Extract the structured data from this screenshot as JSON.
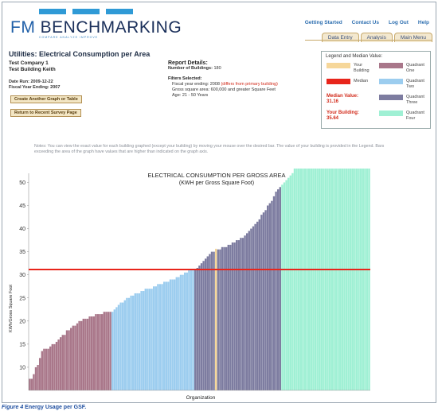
{
  "app": {
    "logo_prefix": "FM ",
    "logo_main": "BENCHMARKING",
    "logo_tagline": "COMPARE    ANALYZE    IMPROVE"
  },
  "top_links": [
    "Getting Started",
    "Contact Us",
    "Log Out",
    "Help"
  ],
  "tabs": [
    "Data Entry",
    "Analysis",
    "Main Menu"
  ],
  "page_title": "Utilities: Electrical Consumption per Area",
  "company": {
    "name": "Test Company 1",
    "building": "Test Building Keith",
    "date_run": "Date Run: 2009-12-22",
    "fiscal_year_ending": "Fiscal Year Ending: 2007"
  },
  "buttons": {
    "create_graph": "Create Another Graph or Table",
    "return_survey": "Return to Recent Survey Page"
  },
  "report": {
    "heading": "Report Details:",
    "num_buildings_label": "Number of Buildings:",
    "num_buildings_value": "180",
    "filters_heading": "Filters Selected:",
    "filter_fiscal": "Fiscal year ending: 2008",
    "filter_fiscal_note": "(differs from primary building)",
    "filter_area": "Gross square area: 600,000 and greater Square Feet",
    "filter_age": "Age: 21 - 50 Years"
  },
  "legend": {
    "title": "Legend and Median Value:",
    "your_building": "Your Building",
    "median": "Median",
    "q1": "Quadrant One",
    "q2": "Quadrant Two",
    "q3": "Quadrant Three",
    "q4": "Quadrant Four",
    "median_value_label": "Median Value:",
    "median_value": "31.16",
    "your_building_label": "Your Building:",
    "your_building_value": "35.64",
    "colors": {
      "your_building": "#f6d79a",
      "median": "#e8251b",
      "q1": "#a9778a",
      "q2": "#9ccdef",
      "q3": "#7d7ca0",
      "q4": "#9ff0d4"
    }
  },
  "notes": "Notes: You can view the exact value for each building graphed (except your building) by moving your mouse over the desired bar. The value of your building is provided in the Legend. Bars exceeding the area of the graph have values that are higher than indicated on the graph axis.",
  "chart_data": {
    "type": "bar",
    "title": "ELECTRICAL CONSUMPTION PER GROSS AREA",
    "subtitle": "(KWH per Gross Square Foot)",
    "xlabel": "Organization",
    "ylabel": "KWh/Gross Square Foot",
    "ylim": [
      5,
      53
    ],
    "yticks": [
      10,
      15,
      20,
      25,
      30,
      35,
      40,
      45,
      50
    ],
    "median": 31.16,
    "your_building": 35.64,
    "grid": false,
    "quadrants": [
      {
        "name": "Quadrant One",
        "color": "#a9778a",
        "values": [
          7.5,
          7.5,
          8.5,
          10,
          10.5,
          12,
          13.5,
          14,
          14,
          14,
          14.5,
          15,
          15,
          15.5,
          16,
          16.5,
          17,
          17,
          18,
          18,
          18.5,
          19,
          19,
          19.5,
          20,
          20,
          20.5,
          20.5,
          20.5,
          21,
          21,
          21,
          21.5,
          21.5,
          21.5,
          21.5,
          22,
          22,
          22,
          22
        ]
      },
      {
        "name": "Quadrant Two",
        "color": "#9ccdef",
        "values": [
          22,
          22.5,
          23,
          23.5,
          24,
          24,
          24.5,
          25,
          25,
          25.5,
          25.5,
          26,
          26,
          26,
          26.5,
          26.5,
          27,
          27,
          27,
          27,
          27.5,
          27.5,
          28,
          28,
          28,
          28.5,
          28.5,
          28.5,
          29,
          29,
          29,
          29.5,
          29.5,
          30,
          30,
          30.5,
          30.5,
          31,
          31,
          31
        ]
      },
      {
        "name": "Quadrant Three",
        "color": "#7d7ca0",
        "values": [
          31.2,
          31.5,
          32,
          32.5,
          33,
          33.5,
          34,
          34.5,
          35,
          35,
          35.64,
          35.5,
          35.5,
          36,
          36,
          36,
          36.5,
          36.5,
          37,
          37,
          37.5,
          37.5,
          38,
          38,
          38.5,
          39,
          39.5,
          40,
          40.5,
          41,
          41.5,
          42,
          43,
          43.5,
          44,
          45,
          45.5,
          46,
          47,
          48,
          48.5,
          49
        ]
      },
      {
        "name": "Quadrant Four",
        "color": "#9ff0d4",
        "values": [
          49.5,
          50,
          50.5,
          51,
          51.5,
          52,
          53,
          53,
          53,
          53,
          53,
          53,
          53,
          53,
          53,
          53,
          53,
          53,
          53,
          53,
          53,
          53,
          53,
          53,
          53,
          53,
          53,
          53,
          53,
          53,
          53,
          53,
          53,
          53,
          53,
          53,
          53,
          53,
          53,
          53,
          53,
          53,
          53
        ]
      }
    ],
    "your_building_index": 10,
    "your_building_quadrant": 2
  },
  "caption": {
    "label": "Figure 4",
    "text": " Energy Usage per GSF."
  }
}
